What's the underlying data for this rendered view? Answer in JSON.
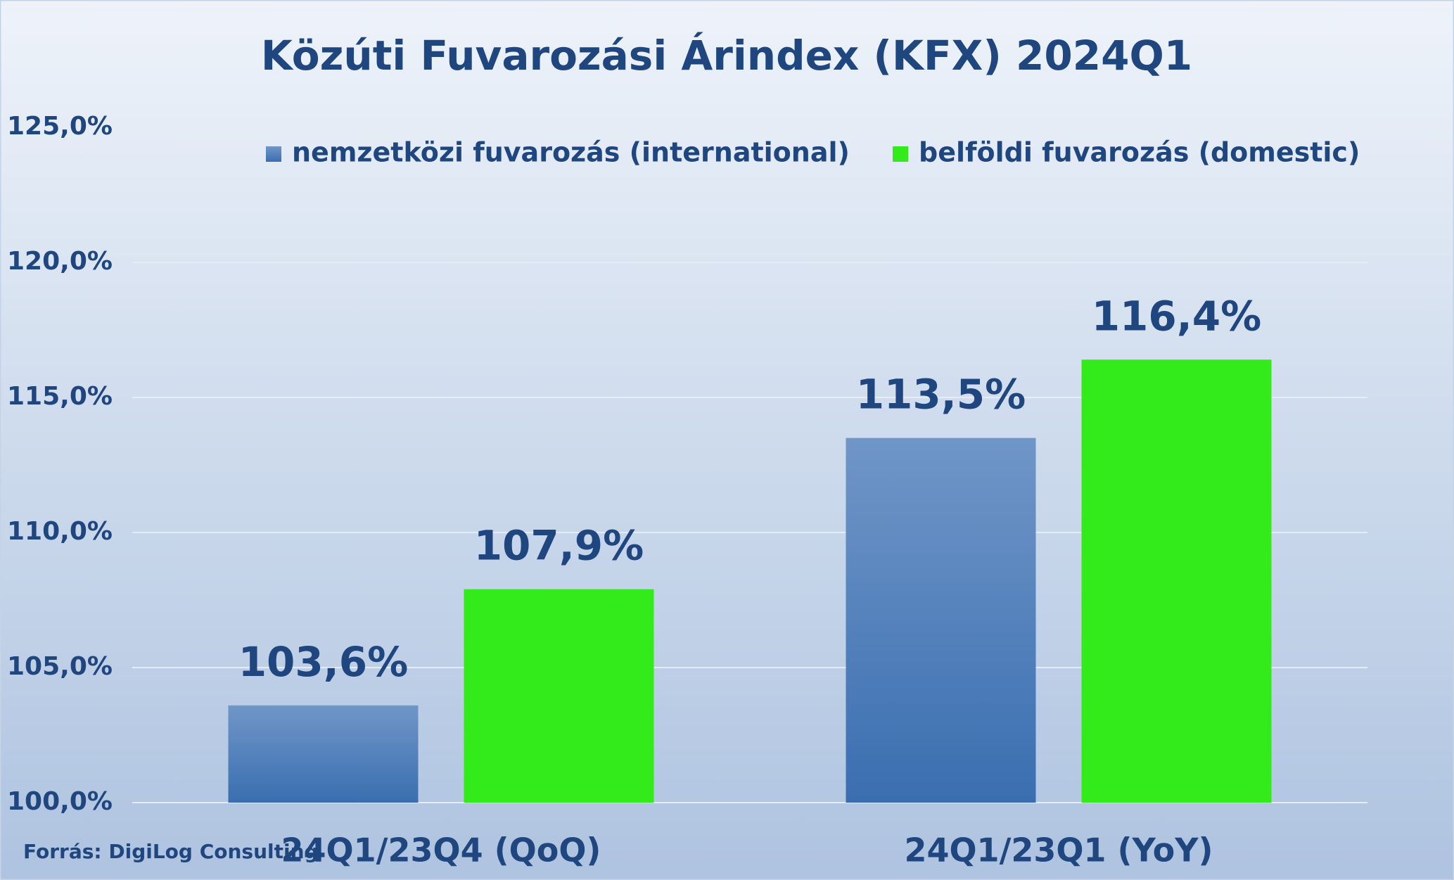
{
  "chart_data": {
    "type": "bar",
    "title": "Közúti Fuvarozási Árindex (KFX) 2024Q1",
    "categories": [
      "24Q1/23Q4 (QoQ)",
      "24Q1/23Q1 (YoY)"
    ],
    "series": [
      {
        "name": "nemzetközi fuvarozás (international)",
        "color": "#4a7bbd",
        "values": [
          103.6,
          113.5
        ],
        "value_labels": [
          "103,6%",
          "113,5%"
        ]
      },
      {
        "name": "belföldi fuvarozás (domestic)",
        "color": "#33ea1a",
        "values": [
          107.9,
          116.4
        ],
        "value_labels": [
          "107,9%",
          "116,4%"
        ]
      }
    ],
    "ylim": [
      100,
      125
    ],
    "yticks": [
      {
        "value": 100,
        "label": "100,0%"
      },
      {
        "value": 105,
        "label": "105,0%"
      },
      {
        "value": 110,
        "label": "110,0%"
      },
      {
        "value": 115,
        "label": "115,0%"
      },
      {
        "value": 120,
        "label": "120,0%"
      },
      {
        "value": 125,
        "label": "125,0%"
      }
    ],
    "grid": true,
    "source": "Forrás: DigiLog Consulting"
  }
}
